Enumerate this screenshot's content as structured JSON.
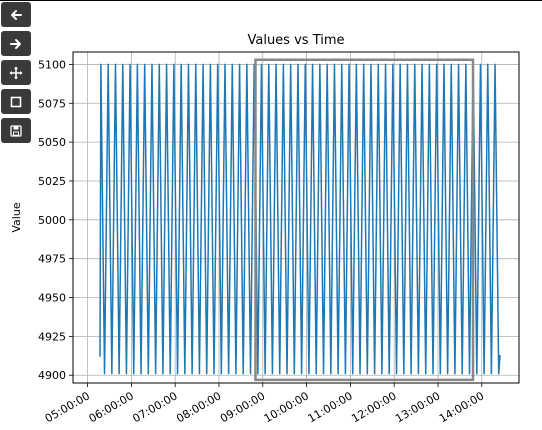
{
  "toolbar": {
    "buttons": [
      {
        "icon": "back-arrow-icon",
        "tooltip": ""
      },
      {
        "icon": "forward-arrow-icon",
        "tooltip": ""
      },
      {
        "icon": "pan-move-icon",
        "tooltip": ""
      },
      {
        "icon": "zoom-rectangle-icon",
        "tooltip": ""
      },
      {
        "icon": "save-figure-icon",
        "tooltip": ""
      }
    ]
  },
  "chart_data": {
    "type": "line",
    "title": "Values vs Time",
    "xlabel": "",
    "ylabel": "Value",
    "x_tick_labels": [
      "05:00:00",
      "06:00:00",
      "07:00:00",
      "08:00:00",
      "09:00:00",
      "10:00:00",
      "11:00:00",
      "12:00:00",
      "13:00:00",
      "14:00:00"
    ],
    "y_tick_labels": [
      "4900",
      "4925",
      "4950",
      "4975",
      "5000",
      "5025",
      "5050",
      "5075",
      "5100"
    ],
    "xlim": [
      "04:40:00",
      "14:51:00"
    ],
    "ylim": [
      4895,
      5108
    ],
    "grid": true,
    "legend": "none",
    "series": [
      {
        "name": "",
        "color": "#1f77b4",
        "pattern": "oscillating",
        "start": "05:17:00",
        "end": "14:25:00",
        "period_minutes": 10,
        "min": 4901,
        "max": 5100,
        "first_value": 4912,
        "last_value": 4913
      }
    ],
    "selection_box": {
      "x_start": "08:50:00",
      "x_end": "13:48:00",
      "y_start": 4897,
      "y_end": 5103,
      "color": "#888888"
    }
  }
}
